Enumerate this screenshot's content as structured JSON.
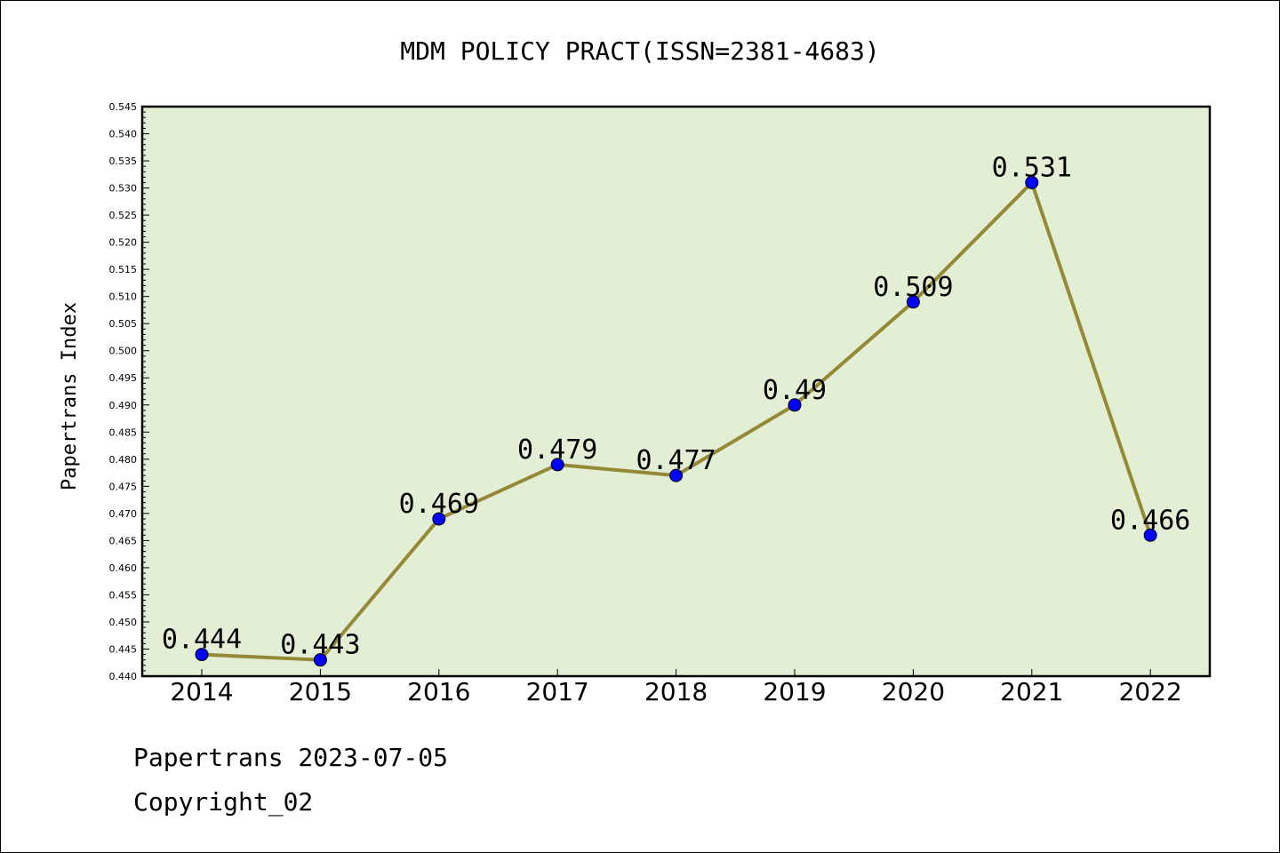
{
  "chart_data": {
    "type": "line",
    "title": "MDM POLICY PRACT(ISSN=2381-4683)",
    "xlabel": "",
    "ylabel": "Papertrans Index",
    "categories": [
      "2014",
      "2015",
      "2016",
      "2017",
      "2018",
      "2019",
      "2020",
      "2021",
      "2022"
    ],
    "series": [
      {
        "values": [
          0.444,
          0.443,
          0.469,
          0.479,
          0.477,
          0.49,
          0.509,
          0.531,
          0.466
        ],
        "labels": [
          "0.444",
          "0.443",
          "0.469",
          "0.479",
          "0.477",
          "0.49",
          "0.509",
          "0.531",
          "0.466"
        ]
      }
    ],
    "ylim": [
      0.44,
      0.545
    ],
    "yticks": [
      "0.440",
      "0.445",
      "0.450",
      "0.455",
      "0.460",
      "0.465",
      "0.470",
      "0.475",
      "0.480",
      "0.485",
      "0.490",
      "0.495",
      "0.500",
      "0.505",
      "0.510",
      "0.515",
      "0.520",
      "0.525",
      "0.530",
      "0.535",
      "0.540",
      "0.545"
    ],
    "grid": false,
    "colors": {
      "plot_bg": "#e2efd5",
      "line": "#958837",
      "marker": "#0000ff"
    }
  },
  "footer": {
    "line1": "Papertrans 2023-07-05",
    "line2": "Copyright_02"
  }
}
